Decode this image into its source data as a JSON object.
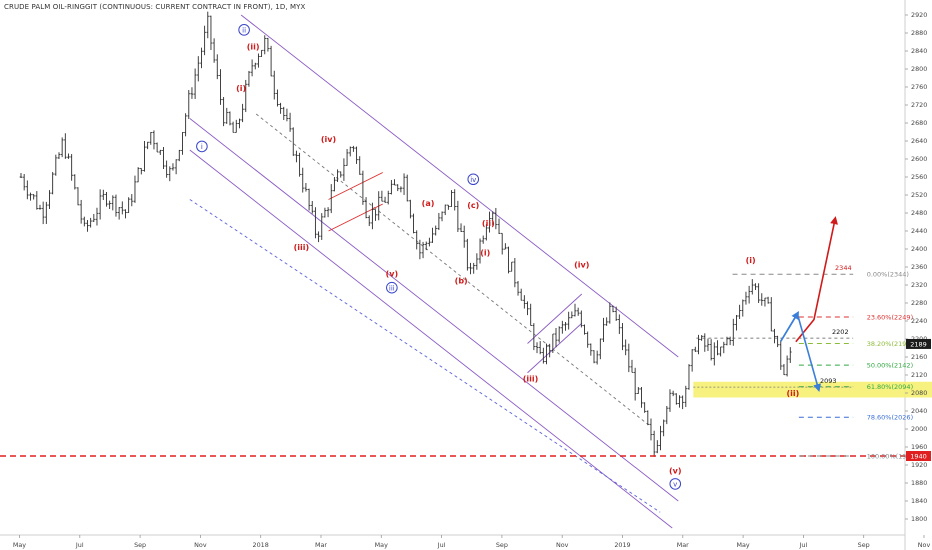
{
  "chart_data": {
    "type": "ohlc",
    "title": "CRUDE PALM OIL-RINGGIT (CONTINUOUS: CURRENT CONTRACT IN FRONT), 1D, MYX",
    "ylim": [
      1780,
      2930
    ],
    "y_ticks": [
      1800,
      1840,
      1880,
      1920,
      1960,
      2000,
      2040,
      2080,
      2120,
      2160,
      2200,
      2240,
      2280,
      2320,
      2360,
      2400,
      2440,
      2480,
      2520,
      2560,
      2600,
      2640,
      2680,
      2720,
      2760,
      2800,
      2840,
      2880,
      2920
    ],
    "x_labels": [
      "May",
      "Jul",
      "Sep",
      "Nov",
      "2018",
      "Mar",
      "May",
      "Jul",
      "Sep",
      "Nov",
      "2019",
      "Mar",
      "May",
      "Jul",
      "Sep",
      "Nov"
    ],
    "last_price": "2189",
    "support_label": "1940",
    "support_price": 1940,
    "price_path": [
      {
        "m": 0,
        "p": 2560
      },
      {
        "m": 0.7,
        "p": 2480
      },
      {
        "m": 1.4,
        "p": 2640
      },
      {
        "m": 2.1,
        "p": 2440
      },
      {
        "m": 2.8,
        "p": 2520
      },
      {
        "m": 3.5,
        "p": 2480
      },
      {
        "m": 4.3,
        "p": 2660
      },
      {
        "m": 5.0,
        "p": 2560
      },
      {
        "m": 5.6,
        "p": 2740
      },
      {
        "m": 6.2,
        "p": 2900
      },
      {
        "m": 6.7,
        "p": 2700
      },
      {
        "m": 7.1,
        "p": 2650
      },
      {
        "m": 7.7,
        "p": 2820
      },
      {
        "m": 8.1,
        "p": 2860
      },
      {
        "m": 8.4,
        "p": 2760
      },
      {
        "m": 8.8,
        "p": 2680
      },
      {
        "m": 9.3,
        "p": 2560
      },
      {
        "m": 9.8,
        "p": 2430
      },
      {
        "m": 10.4,
        "p": 2540
      },
      {
        "m": 11.0,
        "p": 2640
      },
      {
        "m": 11.5,
        "p": 2470
      },
      {
        "m": 12.2,
        "p": 2520
      },
      {
        "m": 12.7,
        "p": 2560
      },
      {
        "m": 13.2,
        "p": 2390
      },
      {
        "m": 13.8,
        "p": 2450
      },
      {
        "m": 14.3,
        "p": 2520
      },
      {
        "m": 14.9,
        "p": 2340
      },
      {
        "m": 15.6,
        "p": 2500
      },
      {
        "m": 16.1,
        "p": 2380
      },
      {
        "m": 16.6,
        "p": 2300
      },
      {
        "m": 17.2,
        "p": 2150
      },
      {
        "m": 17.9,
        "p": 2220
      },
      {
        "m": 18.5,
        "p": 2260
      },
      {
        "m": 19.0,
        "p": 2160
      },
      {
        "m": 19.6,
        "p": 2270
      },
      {
        "m": 20.3,
        "p": 2110
      },
      {
        "m": 20.7,
        "p": 2020
      },
      {
        "m": 21.0,
        "p": 1950
      },
      {
        "m": 21.4,
        "p": 2060
      },
      {
        "m": 22.0,
        "p": 2080
      },
      {
        "m": 22.4,
        "p": 2200
      },
      {
        "m": 23.1,
        "p": 2160
      },
      {
        "m": 23.6,
        "p": 2220
      },
      {
        "m": 24.2,
        "p": 2330
      },
      {
        "m": 24.8,
        "p": 2260
      },
      {
        "m": 25.3,
        "p": 2120
      },
      {
        "m": 25.6,
        "p": 2189
      }
    ],
    "channels": [
      {
        "color": "#8b5cc6",
        "dash": false,
        "m1": 7.3,
        "p1": 2920,
        "m2": 21.8,
        "p2": 2160
      },
      {
        "color": "#8b5cc6",
        "dash": false,
        "m1": 5.6,
        "p1": 2690,
        "m2": 21.8,
        "p2": 1840
      },
      {
        "color": "#8b5cc6",
        "dash": false,
        "m1": 5.6,
        "p1": 2620,
        "m2": 21.6,
        "p2": 1780
      },
      {
        "color": "#777777",
        "dash": true,
        "m1": 7.8,
        "p1": 2700,
        "m2": 20.8,
        "p2": 2010
      },
      {
        "color": "#5a62d8",
        "dash": true,
        "m1": 5.6,
        "p1": 2510,
        "m2": 21.2,
        "p2": 1815
      },
      {
        "color": "#e03030",
        "dash": false,
        "m1": 10.2,
        "p1": 2510,
        "m2": 12.0,
        "p2": 2570
      },
      {
        "color": "#e03030",
        "dash": false,
        "m1": 10.2,
        "p1": 2440,
        "m2": 12.0,
        "p2": 2500
      },
      {
        "color": "#8b5cc6",
        "dash": false,
        "m1": 16.8,
        "p1": 2190,
        "m2": 18.6,
        "p2": 2300
      },
      {
        "color": "#8b5cc6",
        "dash": false,
        "m1": 16.8,
        "p1": 2125,
        "m2": 18.6,
        "p2": 2235
      }
    ],
    "fib_levels": [
      {
        "label": "0.00%(2344)",
        "price": 2344,
        "color": "#888888"
      },
      {
        "label": "23.60%(2249)",
        "price": 2249,
        "color": "#e03030"
      },
      {
        "label": "38.20%(2190)",
        "price": 2190,
        "color": "#8dbb3a"
      },
      {
        "label": "50.00%(2142)",
        "price": 2142,
        "color": "#30a840"
      },
      {
        "label": "61.80%(2094)",
        "price": 2094,
        "color": "#30a840"
      },
      {
        "label": "78.60%(2026)",
        "price": 2026,
        "color": "#3a6fd8"
      },
      {
        "label": "100.00%(1940)",
        "price": 1940,
        "color": "#888888"
      }
    ],
    "callouts": [
      {
        "label": "2344",
        "price": 2344
      },
      {
        "label": "2202",
        "price": 2202
      },
      {
        "label": "2093",
        "price": 2093
      }
    ],
    "waves": [
      {
        "label": "(ii)",
        "m": 7.7,
        "p": 2850,
        "color": "#d11a1a",
        "circle": false
      },
      {
        "label": "ii",
        "m": 7.4,
        "p": 2887,
        "color": "#3a46c8",
        "circle": true
      },
      {
        "label": "(i)",
        "m": 7.3,
        "p": 2757,
        "color": "#d11a1a",
        "circle": false
      },
      {
        "label": "i",
        "m": 6.0,
        "p": 2628,
        "color": "#3a46c8",
        "circle": true
      },
      {
        "label": "(iv)",
        "m": 10.2,
        "p": 2644,
        "color": "#d11a1a",
        "circle": false
      },
      {
        "label": "(iii)",
        "m": 9.3,
        "p": 2404,
        "color": "#d11a1a",
        "circle": false
      },
      {
        "label": "(v)",
        "m": 12.3,
        "p": 2345,
        "color": "#d11a1a",
        "circle": false
      },
      {
        "label": "iii",
        "m": 12.3,
        "p": 2314,
        "color": "#3a46c8",
        "circle": true
      },
      {
        "label": "(a)",
        "m": 13.5,
        "p": 2502,
        "color": "#d11a1a",
        "circle": false
      },
      {
        "label": "(b)",
        "m": 14.6,
        "p": 2330,
        "color": "#d11a1a",
        "circle": false
      },
      {
        "label": "iv",
        "m": 15.0,
        "p": 2555,
        "color": "#3a46c8",
        "circle": true
      },
      {
        "label": "(c)",
        "m": 15.0,
        "p": 2497,
        "color": "#d11a1a",
        "circle": false
      },
      {
        "label": "(ii)",
        "m": 15.5,
        "p": 2457,
        "color": "#d11a1a",
        "circle": false
      },
      {
        "label": "(i)",
        "m": 15.4,
        "p": 2392,
        "color": "#d11a1a",
        "circle": false
      },
      {
        "label": "(iv)",
        "m": 18.6,
        "p": 2365,
        "color": "#d11a1a",
        "circle": false
      },
      {
        "label": "(iii)",
        "m": 16.9,
        "p": 2112,
        "color": "#d11a1a",
        "circle": false
      },
      {
        "label": "(v)",
        "m": 21.7,
        "p": 1907,
        "color": "#d11a1a",
        "circle": false
      },
      {
        "label": "v",
        "m": 21.7,
        "p": 1878,
        "color": "#3a46c8",
        "circle": true
      },
      {
        "label": "(i)",
        "m": 24.2,
        "p": 2375,
        "color": "#d11a1a",
        "circle": false
      },
      {
        "label": "(ii)",
        "m": 25.6,
        "p": 2080,
        "color": "#d11a1a",
        "circle": false
      }
    ],
    "zone": {
      "m1": 22.3,
      "m2": 31.0,
      "p1": 2105,
      "p2": 2070,
      "color": "#f6f06a"
    },
    "arrows": [
      {
        "color": "#d11a1a",
        "points": [
          [
            25.7,
            2194
          ],
          [
            26.3,
            2243
          ],
          [
            27.0,
            2466
          ]
        ]
      },
      {
        "color": "#3a7fd8",
        "points": [
          [
            25.2,
            2195
          ],
          [
            25.75,
            2256
          ],
          [
            26.45,
            2089
          ]
        ]
      }
    ]
  }
}
